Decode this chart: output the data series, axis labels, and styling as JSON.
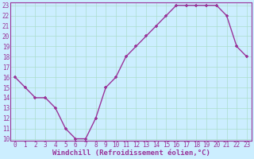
{
  "x": [
    0,
    1,
    2,
    3,
    4,
    5,
    6,
    7,
    8,
    9,
    10,
    11,
    12,
    13,
    14,
    15,
    16,
    17,
    18,
    19,
    20,
    21,
    22,
    23
  ],
  "y": [
    16,
    15,
    14,
    14,
    13,
    11,
    10,
    10,
    12,
    15,
    16,
    18,
    19,
    20,
    21,
    22,
    23,
    23,
    23,
    23,
    23,
    22,
    19,
    18
  ],
  "line_color": "#993399",
  "marker": "+",
  "bg_color": "#cceeff",
  "grid_color": "#aaddcc",
  "xlabel": "Windchill (Refroidissement éolien,°C)",
  "xlabel_color": "#993399",
  "tick_color": "#993399",
  "ylim": [
    10,
    23
  ],
  "xlim": [
    -0.5,
    23.5
  ],
  "yticks": [
    10,
    11,
    12,
    13,
    14,
    15,
    16,
    17,
    18,
    19,
    20,
    21,
    22,
    23
  ],
  "xticks": [
    0,
    1,
    2,
    3,
    4,
    5,
    6,
    7,
    8,
    9,
    10,
    11,
    12,
    13,
    14,
    15,
    16,
    17,
    18,
    19,
    20,
    21,
    22,
    23
  ],
  "font_family": "monospace",
  "tick_fontsize": 5.5,
  "xlabel_fontsize": 6.5,
  "linewidth": 1.0,
  "markersize": 3.5
}
